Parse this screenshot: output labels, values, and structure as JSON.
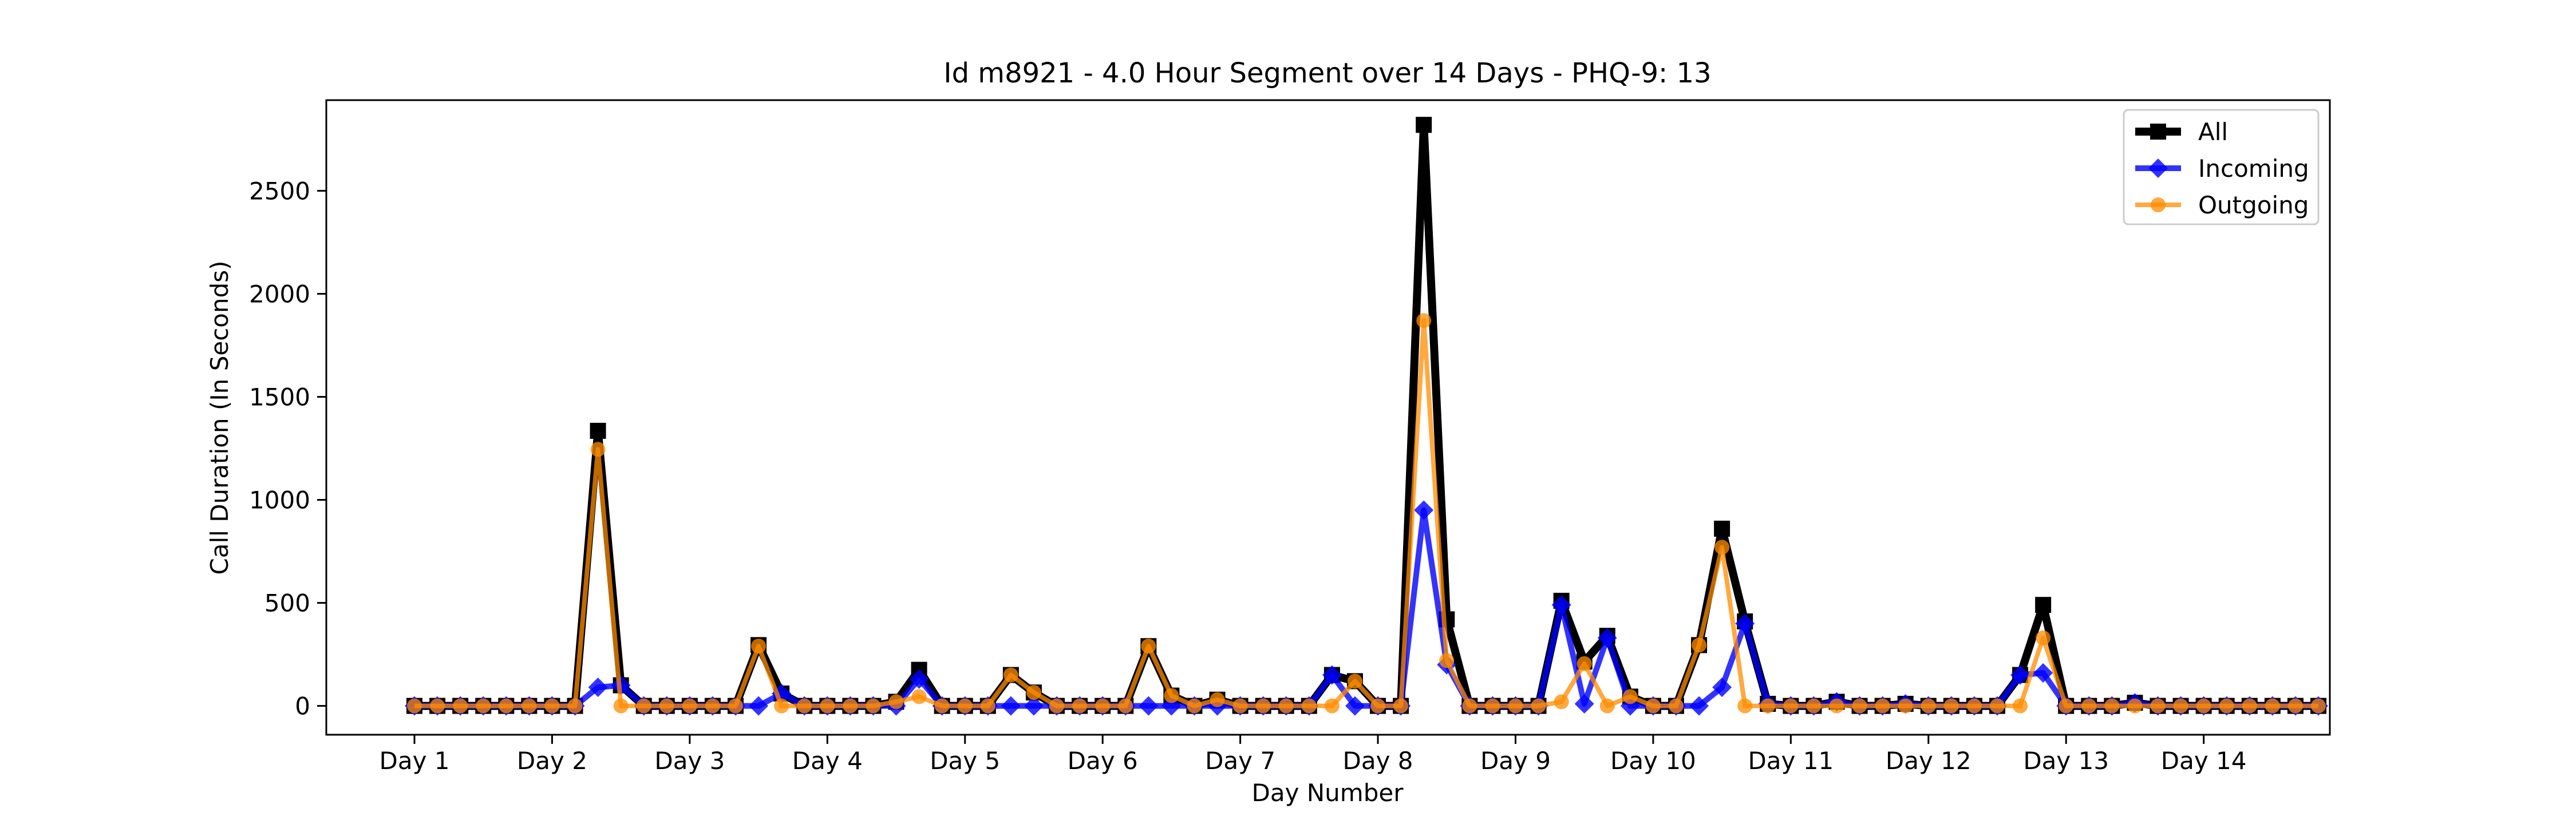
{
  "chart_data": {
    "type": "line",
    "title": "Id m8921 - 4.0 Hour Segment over 14 Days - PHQ-9: 13",
    "xlabel": "Day Number",
    "ylabel": "Call Duration (In Seconds)",
    "x_tick_labels": [
      "Day 1",
      "Day 2",
      "Day 3",
      "Day 4",
      "Day 5",
      "Day 6",
      "Day 7",
      "Day 8",
      "Day 9",
      "Day 10",
      "Day 11",
      "Day 12",
      "Day 13",
      "Day 14"
    ],
    "y_ticks": [
      0,
      500,
      1000,
      1500,
      2000,
      2500
    ],
    "ylim": [
      -140,
      2940
    ],
    "x_points_per_day": 6,
    "grid": false,
    "legend_position": "upper right",
    "series": [
      {
        "name": "All",
        "color": "#000000",
        "marker": "square",
        "values": [
          0,
          0,
          0,
          0,
          0,
          0,
          0,
          0,
          1335,
          100,
          0,
          0,
          0,
          0,
          0,
          295,
          60,
          0,
          0,
          0,
          0,
          20,
          175,
          0,
          0,
          0,
          150,
          65,
          0,
          0,
          0,
          0,
          290,
          50,
          0,
          30,
          0,
          0,
          0,
          0,
          150,
          120,
          0,
          0,
          2820,
          420,
          0,
          0,
          0,
          0,
          510,
          215,
          340,
          45,
          0,
          0,
          295,
          860,
          410,
          10,
          0,
          0,
          20,
          0,
          0,
          10,
          0,
          0,
          0,
          0,
          150,
          490,
          0,
          0,
          0,
          15,
          0,
          0,
          0,
          0,
          0,
          0,
          0,
          0
        ]
      },
      {
        "name": "Incoming",
        "color": "#0000ff",
        "marker": "diamond",
        "values": [
          0,
          0,
          0,
          0,
          0,
          0,
          0,
          0,
          90,
          100,
          0,
          0,
          0,
          0,
          0,
          0,
          60,
          0,
          0,
          0,
          0,
          0,
          130,
          0,
          0,
          0,
          0,
          0,
          0,
          0,
          0,
          0,
          0,
          0,
          0,
          0,
          0,
          0,
          0,
          0,
          150,
          0,
          0,
          0,
          950,
          200,
          0,
          0,
          0,
          0,
          490,
          10,
          330,
          0,
          0,
          0,
          0,
          90,
          400,
          10,
          0,
          0,
          20,
          0,
          0,
          10,
          0,
          0,
          0,
          0,
          150,
          160,
          0,
          0,
          0,
          15,
          0,
          0,
          0,
          0,
          0,
          0,
          0,
          0
        ]
      },
      {
        "name": "Outgoing",
        "color": "#ff8c00",
        "marker": "circle",
        "values": [
          0,
          0,
          0,
          0,
          0,
          0,
          0,
          0,
          1245,
          0,
          0,
          0,
          0,
          0,
          0,
          290,
          0,
          0,
          0,
          0,
          0,
          20,
          45,
          0,
          0,
          0,
          150,
          65,
          0,
          0,
          0,
          0,
          290,
          50,
          0,
          30,
          0,
          0,
          0,
          0,
          0,
          120,
          0,
          0,
          1870,
          220,
          0,
          0,
          0,
          0,
          20,
          205,
          0,
          45,
          0,
          0,
          295,
          770,
          0,
          0,
          0,
          0,
          0,
          0,
          0,
          0,
          0,
          0,
          0,
          0,
          0,
          330,
          0,
          0,
          0,
          0,
          0,
          0,
          0,
          0,
          0,
          0,
          0,
          0
        ]
      }
    ]
  }
}
